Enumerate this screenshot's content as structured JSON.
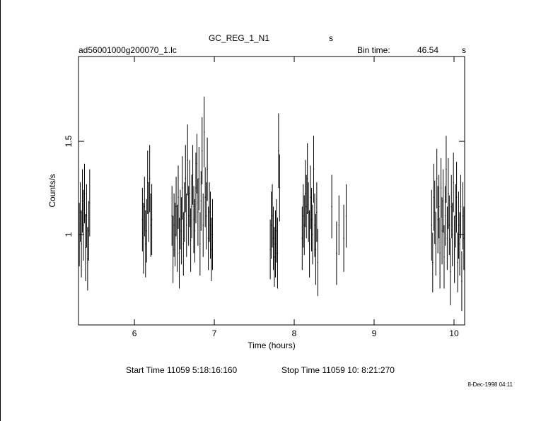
{
  "chart_data": {
    "type": "errorbar",
    "title": "GC_REG_1_N1",
    "title_unit": "s",
    "file_label": "ad56001000g200070_1.lc",
    "bin_time_label": "Bin time:",
    "bin_time": 46.54,
    "bin_time_unit": "s",
    "xlabel": "Time (hours)",
    "ylabel": "Counts/s",
    "start_time": "Start Time 11059  5:18:16:160",
    "stop_time": "Stop Time 11059 10: 8:21:270",
    "timestamp": "8-Dec-1998 04:11",
    "color": "#000000",
    "xlim": [
      5.3,
      10.133
    ],
    "ylim": [
      0.515,
      1.955
    ],
    "xticks": [
      6,
      7,
      8,
      9,
      10
    ],
    "yticks": [
      1,
      1.5
    ],
    "x": [
      5.31,
      5.323,
      5.336,
      5.349,
      5.362,
      5.375,
      5.388,
      5.401,
      5.414,
      5.427,
      5.44,
      6.1,
      6.113,
      6.126,
      6.139,
      6.152,
      6.165,
      6.178,
      6.191,
      6.204,
      6.217,
      6.47,
      6.483,
      6.496,
      6.509,
      6.522,
      6.535,
      6.548,
      6.561,
      6.574,
      6.587,
      6.6,
      6.613,
      6.626,
      6.639,
      6.652,
      6.665,
      6.678,
      6.691,
      6.704,
      6.717,
      6.73,
      6.743,
      6.756,
      6.769,
      6.782,
      6.795,
      6.808,
      6.821,
      6.834,
      6.847,
      6.86,
      6.873,
      6.886,
      6.899,
      6.912,
      6.925,
      6.938,
      6.951,
      6.964,
      6.977,
      7.7,
      7.713,
      7.726,
      7.739,
      7.752,
      7.765,
      7.778,
      7.791,
      7.804,
      7.817,
      8.1,
      8.113,
      8.126,
      8.139,
      8.152,
      8.165,
      8.178,
      8.191,
      8.204,
      8.217,
      8.23,
      8.243,
      8.256,
      8.269,
      8.282,
      8.295,
      8.47,
      8.53,
      8.56,
      8.62,
      8.65,
      9.72,
      9.733,
      9.746,
      9.759,
      9.772,
      9.785,
      9.798,
      9.811,
      9.824,
      9.837,
      9.85,
      9.863,
      9.876,
      9.889,
      9.902,
      9.915,
      9.928,
      9.941,
      9.954,
      9.967,
      9.98,
      9.993,
      10.006,
      10.019,
      10.032,
      10.045,
      10.058,
      10.071,
      10.084,
      10.097,
      10.11,
      10.123
    ],
    "values": [
      1.0,
      1.12,
      0.95,
      1.18,
      1.05,
      1.22,
      0.93,
      1.1,
      0.87,
      1.02,
      1.17,
      1.08,
      0.98,
      1.15,
      0.95,
      1.02,
      1.28,
      1.12,
      1.3,
      1.05,
      1.08,
      1.1,
      0.92,
      1.05,
      1.0,
      1.15,
      0.98,
      1.2,
      0.9,
      1.08,
      1.02,
      1.25,
      0.95,
      1.12,
      1.3,
      1.05,
      1.4,
      1.1,
      1.22,
      0.97,
      1.15,
      1.32,
      1.08,
      1.02,
      1.25,
      1.38,
      1.12,
      1.3,
      0.95,
      1.18,
      1.45,
      1.05,
      1.55,
      1.2,
      1.1,
      1.35,
      0.98,
      1.12,
      1.05,
      0.92,
      1.0,
      0.92,
      1.05,
      1.1,
      0.98,
      0.88,
      0.95,
      1.02,
      0.9,
      1.45,
      1.25,
      0.98,
      1.1,
      1.05,
      1.22,
      1.15,
      1.3,
      1.12,
      0.95,
      1.2,
      1.08,
      1.0,
      1.35,
      1.05,
      0.92,
      1.12,
      0.85,
      1.15,
      0.9,
      1.05,
      0.98,
      1.1,
      1.05,
      0.85,
      1.2,
      1.12,
      0.95,
      1.3,
      1.08,
      1.15,
      0.9,
      1.25,
      1.02,
      1.18,
      0.88,
      1.1,
      1.35,
      0.98,
      1.22,
      1.05,
      0.8,
      1.15,
      1.0,
      1.28,
      0.92,
      1.1,
      1.2,
      0.85,
      1.05,
      0.95,
      1.15,
      0.75,
      1.1,
      0.98
    ],
    "errors": [
      0.17,
      0.16,
      0.18,
      0.17,
      0.19,
      0.16,
      0.18,
      0.17,
      0.17,
      0.16,
      0.18,
      0.17,
      0.19,
      0.16,
      0.18,
      0.17,
      0.17,
      0.16,
      0.18,
      0.17,
      0.19,
      0.16,
      0.18,
      0.17,
      0.17,
      0.16,
      0.18,
      0.17,
      0.19,
      0.16,
      0.18,
      0.17,
      0.17,
      0.16,
      0.18,
      0.17,
      0.19,
      0.16,
      0.18,
      0.17,
      0.17,
      0.16,
      0.18,
      0.17,
      0.19,
      0.16,
      0.18,
      0.17,
      0.17,
      0.16,
      0.18,
      0.17,
      0.19,
      0.16,
      0.18,
      0.17,
      0.17,
      0.16,
      0.18,
      0.17,
      0.19,
      0.16,
      0.18,
      0.17,
      0.17,
      0.16,
      0.18,
      0.17,
      0.19,
      0.2,
      0.18,
      0.17,
      0.17,
      0.16,
      0.18,
      0.17,
      0.19,
      0.16,
      0.18,
      0.17,
      0.17,
      0.16,
      0.18,
      0.17,
      0.19,
      0.16,
      0.18,
      0.17,
      0.17,
      0.16,
      0.18,
      0.17,
      0.19,
      0.16,
      0.18,
      0.17,
      0.17,
      0.16,
      0.18,
      0.17,
      0.19,
      0.16,
      0.18,
      0.17,
      0.17,
      0.16,
      0.18,
      0.17,
      0.19,
      0.16,
      0.18,
      0.17,
      0.17,
      0.16,
      0.18,
      0.17,
      0.19,
      0.16,
      0.18,
      0.17,
      0.17,
      0.16,
      0.18,
      0.17
    ]
  }
}
